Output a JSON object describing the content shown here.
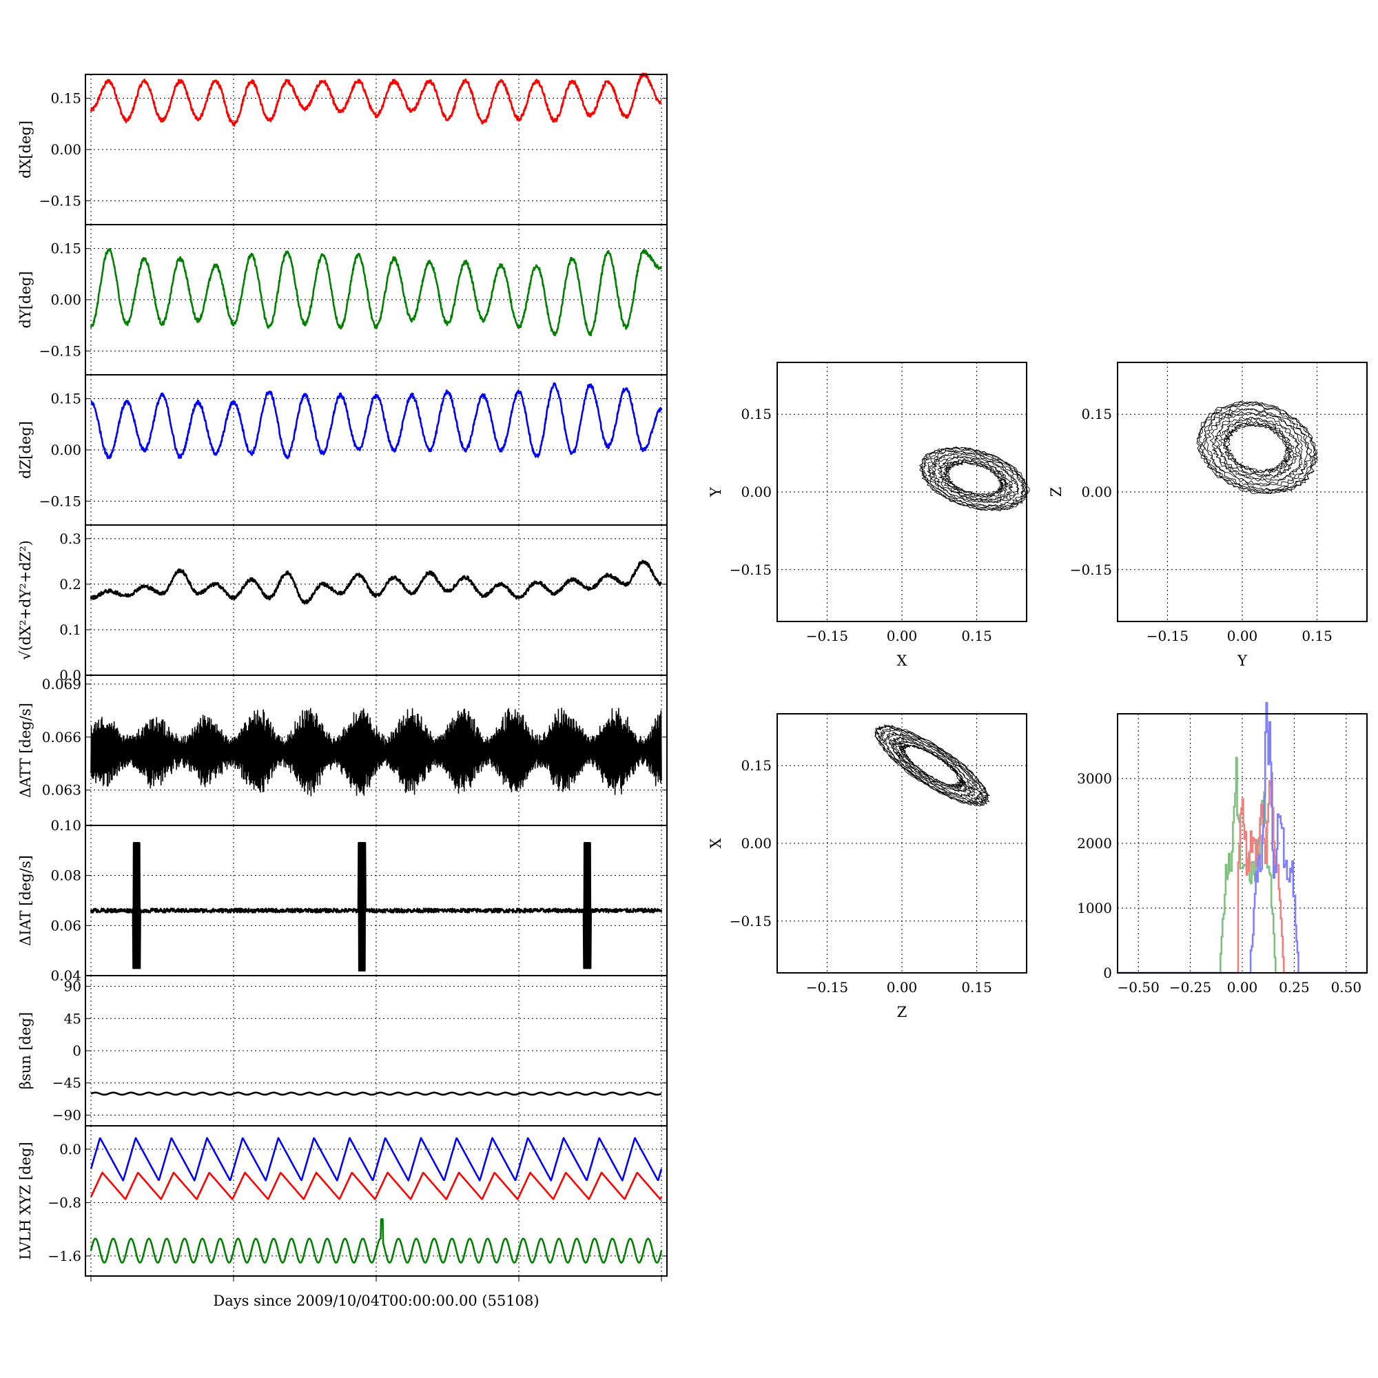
{
  "figure": {
    "xlabel": "Days since 2009/10/04T00:00:00.00 (55108)"
  },
  "colors": {
    "red": "#ff0000",
    "green": "#008000",
    "blue": "#0000ff",
    "black": "#000000",
    "hist_red": "#f08080",
    "hist_green": "#7fbf7f",
    "hist_blue": "#8080ff"
  },
  "chart_data": [
    {
      "id": "dx",
      "type": "line",
      "ylabel": "dX[deg]",
      "ylim": [
        -0.22,
        0.22
      ],
      "yticks": [
        -0.15,
        0.0,
        0.15
      ],
      "ytick_labels": [
        "−0.15",
        "0.00",
        "0.15"
      ],
      "x_range_days": [
        0,
        1
      ],
      "grid": true,
      "series": [
        {
          "color": "red",
          "baseline": 0.15,
          "amplitude": 0.055,
          "cycles": 16,
          "phase": 1.2,
          "noise": 0.006,
          "samples": [
            0.115,
            0.2,
            0.085,
            0.2,
            0.085,
            0.2,
            0.09,
            0.2,
            0.075,
            0.2,
            0.085,
            0.2,
            0.12,
            0.2,
            0.11,
            0.2,
            0.1,
            0.2,
            0.115,
            0.2,
            0.09,
            0.2,
            0.08,
            0.2,
            0.09,
            0.2,
            0.085,
            0.2,
            0.1,
            0.2,
            0.095,
            0.22,
            0.135
          ]
        }
      ]
    },
    {
      "id": "dy",
      "type": "line",
      "ylabel": "dY[deg]",
      "ylim": [
        -0.22,
        0.22
      ],
      "yticks": [
        -0.15,
        0.0,
        0.15
      ],
      "ytick_labels": [
        "−0.15",
        "0.00",
        "0.15"
      ],
      "x_range_days": [
        0,
        1
      ],
      "grid": true,
      "series": [
        {
          "color": "green",
          "baseline": 0.025,
          "amplitude": 0.085,
          "cycles": 16,
          "phase": 3.4,
          "noise": 0.006,
          "samples": [
            -0.08,
            0.145,
            -0.07,
            0.12,
            -0.07,
            0.12,
            -0.06,
            0.1,
            -0.07,
            0.13,
            -0.08,
            0.14,
            -0.07,
            0.13,
            -0.08,
            0.13,
            -0.08,
            0.12,
            -0.06,
            0.11,
            -0.07,
            0.11,
            -0.06,
            0.1,
            -0.08,
            0.1,
            -0.1,
            0.12,
            -0.1,
            0.14,
            -0.08,
            0.14,
            0.09
          ]
        }
      ]
    },
    {
      "id": "dz",
      "type": "line",
      "ylabel": "dZ[deg]",
      "ylim": [
        -0.22,
        0.22
      ],
      "yticks": [
        -0.15,
        0.0,
        0.15
      ],
      "ytick_labels": [
        "−0.15",
        "0.00",
        "0.15"
      ],
      "x_range_days": [
        0,
        1
      ],
      "grid": true,
      "series": [
        {
          "color": "blue",
          "baseline": 0.065,
          "amplitude": 0.08,
          "cycles": 16,
          "phase": 0.2,
          "noise": 0.006,
          "samples": [
            0.14,
            -0.02,
            0.14,
            0.0,
            0.16,
            -0.02,
            0.14,
            -0.01,
            0.14,
            -0.01,
            0.17,
            -0.02,
            0.16,
            -0.01,
            0.16,
            0.0,
            0.16,
            0.0,
            0.16,
            0.0,
            0.17,
            0.0,
            0.16,
            0.0,
            0.17,
            -0.02,
            0.19,
            -0.01,
            0.19,
            0.01,
            0.18,
            0.0,
            0.12
          ]
        }
      ]
    },
    {
      "id": "dtot",
      "type": "line",
      "ylabel": "√(dX²+dY²+dZ²)",
      "ylim": [
        0.0,
        0.33
      ],
      "yticks": [
        0.0,
        0.1,
        0.2,
        0.3
      ],
      "ytick_labels": [
        "0.0",
        "0.1",
        "0.2",
        "0.3"
      ],
      "x_range_days": [
        0,
        1
      ],
      "grid": true,
      "series": [
        {
          "color": "black",
          "baseline": 0.195,
          "amplitude": 0.018,
          "cycles": 16,
          "phase": 0.5,
          "noise": 0.004,
          "samples": [
            0.17,
            0.185,
            0.175,
            0.195,
            0.18,
            0.23,
            0.18,
            0.2,
            0.17,
            0.21,
            0.17,
            0.225,
            0.16,
            0.2,
            0.18,
            0.22,
            0.175,
            0.215,
            0.18,
            0.225,
            0.185,
            0.215,
            0.175,
            0.2,
            0.17,
            0.205,
            0.18,
            0.21,
            0.19,
            0.22,
            0.2,
            0.25,
            0.2
          ]
        }
      ]
    },
    {
      "id": "datt",
      "type": "line",
      "ylabel": "ΔATT [deg/s]",
      "ylim": [
        0.061,
        0.0695
      ],
      "yticks": [
        0.063,
        0.066,
        0.069
      ],
      "ytick_labels": [
        "0.063",
        "0.066",
        "0.069"
      ],
      "x_range_days": [
        0,
        1
      ],
      "grid": true,
      "series": [
        {
          "color": "black",
          "baseline": 0.0652,
          "amplitude": 0.0012,
          "oscillation": "dense",
          "fill_band": [
            0.0635,
            0.0675
          ]
        }
      ]
    },
    {
      "id": "diat",
      "type": "line",
      "ylabel": "ΔIAT [deg/s]",
      "ylim": [
        0.04,
        0.1
      ],
      "yticks": [
        0.04,
        0.06,
        0.08,
        0.1
      ],
      "ytick_labels": [
        "0.04",
        "0.06",
        "0.08",
        "0.10"
      ],
      "x_range_days": [
        0,
        1
      ],
      "grid": true,
      "series": [
        {
          "color": "black",
          "baseline": 0.066,
          "noise": 0.0008,
          "spikes": [
            {
              "x": 0.08,
              "min": 0.043,
              "max": 0.093
            },
            {
              "x": 0.475,
              "min": 0.042,
              "max": 0.093
            },
            {
              "x": 0.87,
              "min": 0.043,
              "max": 0.093
            }
          ]
        }
      ]
    },
    {
      "id": "beta",
      "type": "line",
      "ylabel": "βsun [deg]",
      "ylim": [
        -105,
        105
      ],
      "yticks": [
        -90,
        -45,
        0,
        45,
        90
      ],
      "ytick_labels": [
        "−90",
        "−45",
        "0",
        "45",
        "90"
      ],
      "x_range_days": [
        0,
        1
      ],
      "grid": true,
      "series": [
        {
          "color": "black",
          "baseline": -60,
          "amplitude": 1.5,
          "cycles": 32
        }
      ]
    },
    {
      "id": "lvlh",
      "type": "line",
      "ylabel": "LVLH XYZ [deg]",
      "ylim": [
        -1.9,
        0.35
      ],
      "yticks": [
        -1.6,
        -0.8,
        0.0
      ],
      "ytick_labels": [
        "−1.6",
        "−0.8",
        "0.0"
      ],
      "x_range_days": [
        0,
        1
      ],
      "grid": true,
      "series": [
        {
          "color": "blue",
          "baseline": -0.15,
          "amplitude": 0.32,
          "cycles": 16,
          "phase": 0.6,
          "shape": "sawtooth"
        },
        {
          "color": "red",
          "baseline": -0.55,
          "amplitude": 0.2,
          "cycles": 16,
          "phase": 0.2,
          "shape": "sawtooth"
        },
        {
          "color": "green",
          "baseline": -1.52,
          "amplitude": 0.18,
          "cycles": 32,
          "phase": 0.0,
          "spike": {
            "x": 0.51,
            "value": -1.05
          }
        }
      ]
    },
    {
      "id": "xy",
      "type": "scatter",
      "xlabel": "X",
      "ylabel": "Y",
      "xlim": [
        -0.25,
        0.25
      ],
      "ylim": [
        -0.25,
        0.25
      ],
      "ticks": [
        -0.15,
        0.0,
        0.15
      ],
      "tick_labels": [
        "−0.15",
        "0.00",
        "0.15"
      ],
      "grid": true,
      "loop": {
        "center": [
          0.145,
          0.025
        ],
        "radius": [
          0.055,
          0.11
        ],
        "rotation_deg": 75,
        "loops": 14
      }
    },
    {
      "id": "yz",
      "type": "scatter",
      "xlabel": "Y",
      "ylabel": "Z",
      "xlim": [
        -0.25,
        0.25
      ],
      "ylim": [
        -0.25,
        0.25
      ],
      "ticks": [
        -0.15,
        0.0,
        0.15
      ],
      "tick_labels": [
        "−0.15",
        "0.00",
        "0.15"
      ],
      "grid": true,
      "loop": {
        "center": [
          0.03,
          0.085
        ],
        "radius": [
          0.12,
          0.085
        ],
        "rotation_deg": -15,
        "loops": 14
      }
    },
    {
      "id": "zx",
      "type": "scatter",
      "xlabel": "Z",
      "ylabel": "X",
      "xlim": [
        -0.25,
        0.25
      ],
      "ylim": [
        -0.25,
        0.25
      ],
      "ticks": [
        -0.15,
        0.0,
        0.15
      ],
      "tick_labels": [
        "−0.15",
        "0.00",
        "0.15"
      ],
      "grid": true,
      "loop": {
        "center": [
          0.06,
          0.15
        ],
        "radius": [
          0.13,
          0.038
        ],
        "rotation_deg": -32,
        "loops": 14
      }
    },
    {
      "id": "hist",
      "type": "bar",
      "xlim": [
        -0.6,
        0.6
      ],
      "ylim": [
        0,
        4000
      ],
      "xticks": [
        -0.5,
        -0.25,
        0.0,
        0.25,
        0.5
      ],
      "xtick_labels": [
        "−0.50",
        "−0.25",
        "0.00",
        "0.25",
        "0.50"
      ],
      "yticks": [
        0,
        1000,
        2000,
        3000
      ],
      "ytick_labels": [
        "0",
        "1000",
        "2000",
        "3000"
      ],
      "grid": true,
      "series": [
        {
          "color": "hist_green",
          "range": [
            -0.11,
            0.16
          ],
          "peaks": [
            [
              -0.03,
              2900
            ],
            [
              0.02,
              1900
            ],
            [
              0.08,
              2000
            ],
            [
              0.1,
              2800
            ]
          ]
        },
        {
          "color": "hist_red",
          "range": [
            -0.02,
            0.2
          ],
          "peaks": [
            [
              0.0,
              2500
            ],
            [
              0.05,
              2200
            ],
            [
              0.09,
              2400
            ],
            [
              0.13,
              3000
            ]
          ]
        },
        {
          "color": "hist_blue",
          "range": [
            0.04,
            0.27
          ],
          "peaks": [
            [
              0.08,
              1800
            ],
            [
              0.12,
              3800
            ],
            [
              0.18,
              2500
            ],
            [
              0.23,
              1200
            ]
          ]
        }
      ]
    }
  ]
}
